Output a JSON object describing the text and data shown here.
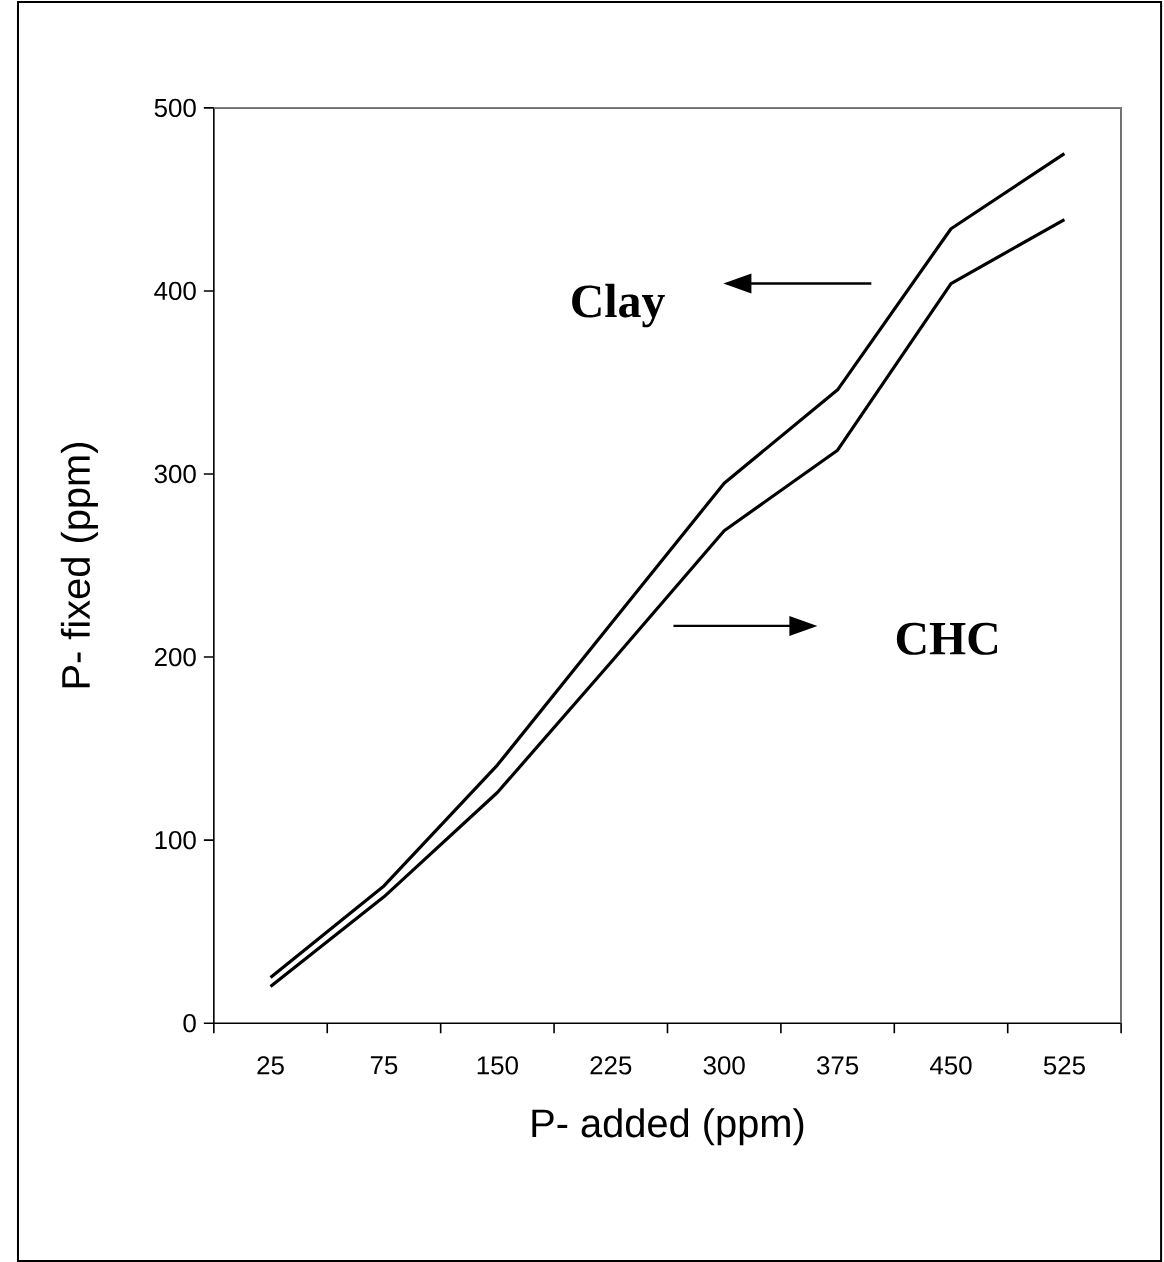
{
  "chart_data": {
    "type": "line",
    "xlabel": "P- added (ppm)",
    "ylabel": "P- fixed (ppm)",
    "categories": [
      "25",
      "75",
      "150",
      "225",
      "300",
      "375",
      "450",
      "525"
    ],
    "series": [
      {
        "color": "#000000",
        "values": [
          25,
          75,
          141,
          218,
          295,
          346,
          434,
          475
        ]
      },
      {
        "color": "#000000",
        "values": [
          20,
          69,
          126,
          197,
          269,
          313,
          404,
          439
        ]
      }
    ],
    "annotations": [
      "Clay",
      "CHC"
    ],
    "ylim": [
      0,
      500
    ],
    "yticks": [
      0,
      100,
      200,
      300,
      400,
      500
    ],
    "grid": false,
    "marker": "none",
    "line_style": "solid"
  }
}
